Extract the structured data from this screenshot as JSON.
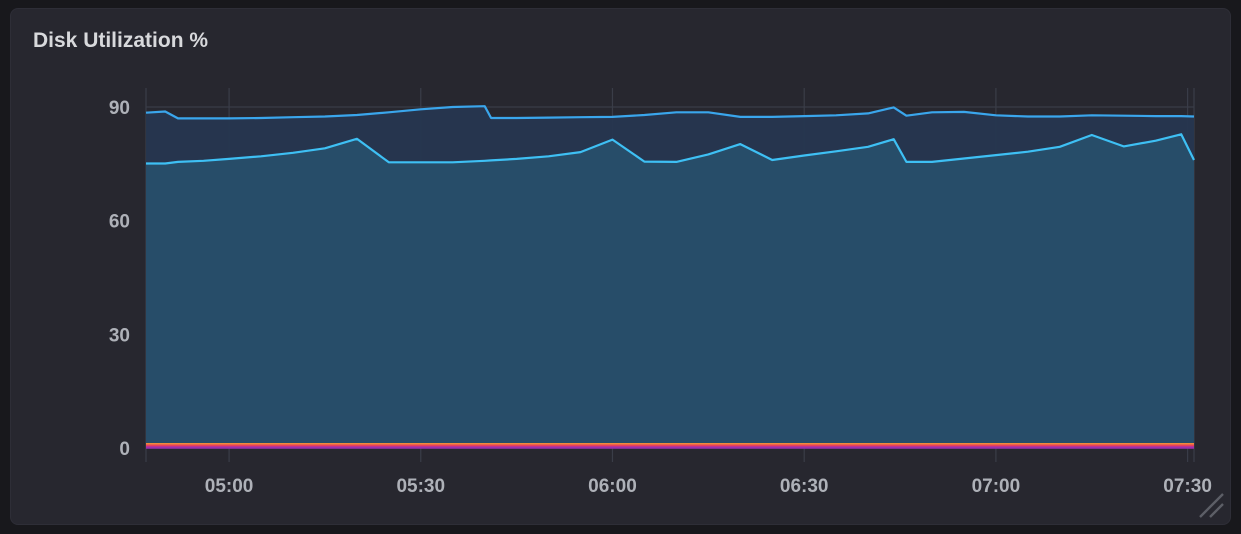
{
  "panel": {
    "title": "Disk Utilization %"
  },
  "colors": {
    "background": "#18181c",
    "panel": "#27272f",
    "grid": "#3a3d48",
    "upper_line": "#3aa6ec",
    "upper_fill": "#263650",
    "lower_line": "#3ec0f4",
    "lower_fill": "#274f6a",
    "baseline_orange": "#f08a3a",
    "baseline_red": "#e8405c",
    "baseline_purple": "#9b2fae"
  },
  "icons": {
    "resize": "resize-corner-icon"
  },
  "chart_data": {
    "type": "area",
    "title": "Disk Utilization %",
    "xlabel": "",
    "ylabel": "",
    "ylim": [
      0,
      90
    ],
    "xlim": [
      "04:47",
      "07:31"
    ],
    "yticks": [
      0,
      30,
      60,
      90
    ],
    "xticks": [
      "05:00",
      "05:30",
      "06:00",
      "06:30",
      "07:00",
      "07:30"
    ],
    "grid": true,
    "legend": "none",
    "x": [
      "04:47",
      "04:50",
      "04:52",
      "04:56",
      "05:00",
      "05:05",
      "05:10",
      "05:15",
      "05:20",
      "05:25",
      "05:30",
      "05:35",
      "05:40",
      "05:41",
      "05:45",
      "05:50",
      "05:55",
      "06:00",
      "06:05",
      "06:10",
      "06:15",
      "06:20",
      "06:25",
      "06:30",
      "06:35",
      "06:40",
      "06:44",
      "06:46",
      "06:50",
      "06:55",
      "07:00",
      "07:05",
      "07:10",
      "07:15",
      "07:20",
      "07:25",
      "07:29",
      "07:31"
    ],
    "series": [
      {
        "values": [
          88.5,
          88.8,
          87.0,
          87.0,
          87.0,
          87.1,
          87.3,
          87.5,
          87.9,
          88.6,
          89.4,
          90.0,
          90.2,
          87.1,
          87.1,
          87.2,
          87.3,
          87.4,
          87.9,
          88.6,
          88.6,
          87.4,
          87.4,
          87.6,
          87.8,
          88.3,
          89.9,
          87.7,
          88.6,
          88.7,
          87.8,
          87.5,
          87.5,
          87.8,
          87.7,
          87.6,
          87.6,
          87.5
        ]
      },
      {
        "values": [
          75.1,
          75.1,
          75.5,
          75.8,
          76.3,
          77.0,
          77.9,
          79.1,
          81.6,
          75.4,
          75.4,
          75.4,
          75.8,
          75.9,
          76.3,
          77.0,
          78.1,
          81.4,
          75.6,
          75.5,
          77.5,
          80.2,
          76.0,
          77.2,
          78.3,
          79.5,
          81.5,
          75.5,
          75.5,
          76.4,
          77.3,
          78.2,
          79.5,
          82.6,
          79.6,
          81.1,
          82.8,
          76.0
        ]
      },
      {
        "values": [
          1.0,
          1.0,
          1.0,
          1.0,
          1.0,
          1.0,
          1.0,
          1.0,
          1.0,
          1.0,
          1.0,
          1.0,
          1.0,
          1.0,
          1.0,
          1.0,
          1.0,
          1.0,
          1.0,
          1.0,
          1.0,
          1.0,
          1.0,
          1.0,
          1.0,
          1.0,
          1.0,
          1.0,
          1.0,
          1.0,
          1.0,
          1.0,
          1.0,
          1.0,
          1.0,
          1.0,
          1.0,
          1.0
        ]
      },
      {
        "values": [
          0.6,
          0.6,
          0.6,
          0.6,
          0.6,
          0.6,
          0.6,
          0.6,
          0.6,
          0.6,
          0.6,
          0.6,
          0.6,
          0.6,
          0.6,
          0.6,
          0.6,
          0.6,
          0.6,
          0.6,
          0.6,
          0.6,
          0.6,
          0.6,
          0.6,
          0.6,
          0.6,
          0.6,
          0.6,
          0.6,
          0.6,
          0.6,
          0.6,
          0.6,
          0.6,
          0.6,
          0.6,
          0.6
        ]
      },
      {
        "values": [
          0.1,
          0.1,
          0.1,
          0.1,
          0.1,
          0.1,
          0.1,
          0.1,
          0.1,
          0.1,
          0.1,
          0.1,
          0.1,
          0.1,
          0.1,
          0.1,
          0.1,
          0.1,
          0.1,
          0.1,
          0.1,
          0.1,
          0.1,
          0.1,
          0.1,
          0.1,
          0.1,
          0.1,
          0.1,
          0.1,
          0.1,
          0.1,
          0.1,
          0.1,
          0.1,
          0.1,
          0.1,
          0.1
        ]
      }
    ]
  }
}
